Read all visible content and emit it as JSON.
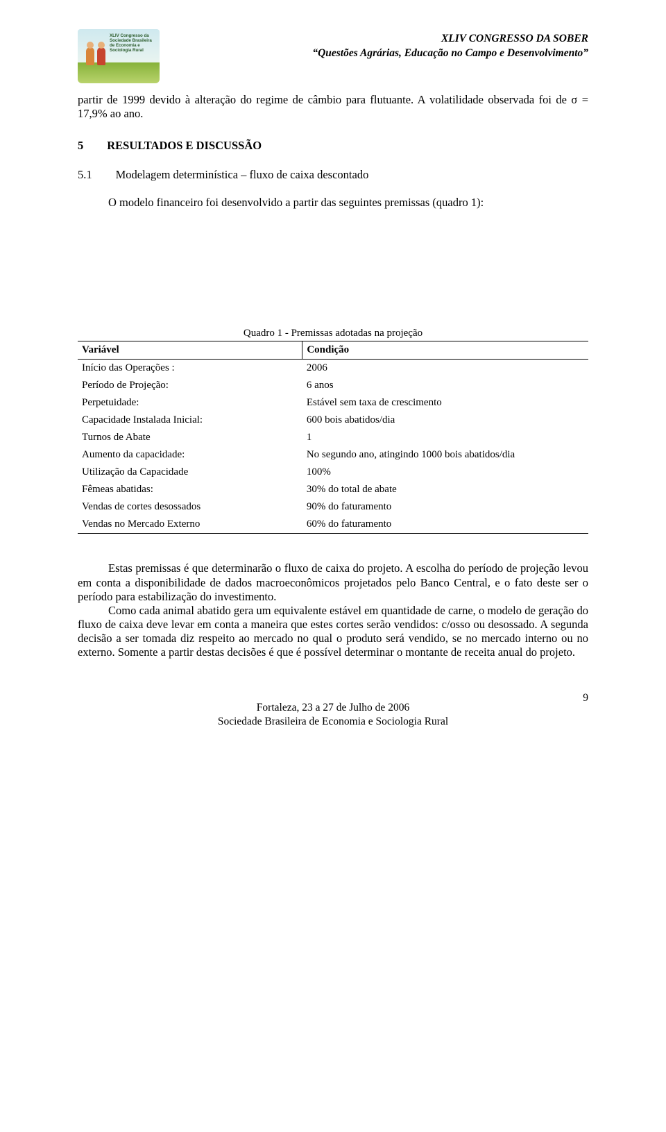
{
  "header": {
    "logo_text": "XLIV Congresso da Sociedade Brasileira de Economia e Sociologia Rural",
    "line1": "XLIV CONGRESSO DA SOBER",
    "line2": "“Questões Agrárias, Educação no Campo e Desenvolvimento”"
  },
  "intro": {
    "p1": "partir de 1999 devido à alteração do regime de câmbio para flutuante. A volatilidade observada foi de σ = 17,9% ao ano."
  },
  "section": {
    "num": "5",
    "title": "RESULTADOS E DISCUSSÃO"
  },
  "subsection": {
    "num": "5.1",
    "title": "Modelagem determinística – fluxo de caixa descontado",
    "p1": "O modelo financeiro foi desenvolvido a partir das seguintes premissas (quadro 1):"
  },
  "table": {
    "caption": "Quadro 1 - Premissas adotadas na projeção",
    "columns": [
      "Variável",
      "Condição"
    ],
    "rows": [
      [
        "Início das Operações :",
        "2006"
      ],
      [
        "Período de Projeção:",
        "6 anos"
      ],
      [
        "Perpetuidade:",
        "Estável sem taxa de crescimento"
      ],
      [
        "Capacidade Instalada Inicial:",
        "600 bois abatidos/dia"
      ],
      [
        "Turnos de Abate",
        "1"
      ],
      [
        "Aumento da capacidade:",
        "No segundo ano, atingindo 1000 bois abatidos/dia"
      ],
      [
        "Utilização da Capacidade",
        "100%"
      ],
      [
        "Fêmeas abatidas:",
        "30% do total de abate"
      ],
      [
        "Vendas de cortes desossados",
        "90% do faturamento"
      ],
      [
        "Vendas no Mercado Externo",
        "60% do faturamento"
      ]
    ]
  },
  "after": {
    "p1": "Estas premissas é que determinarão o fluxo de caixa do projeto. A escolha do período de projeção levou em conta a disponibilidade de dados macroeconômicos projetados pelo Banco Central, e o fato deste ser o período para estabilização do investimento.",
    "p2": "Como cada animal abatido gera um equivalente estável em quantidade de carne, o modelo de geração do fluxo de caixa deve levar em conta a maneira que estes cortes serão vendidos: c/osso ou desossado. A segunda decisão a ser tomada diz respeito ao mercado no qual o produto será vendido, se no mercado interno ou no externo. Somente a partir destas decisões é que é possível determinar o montante de receita anual do projeto."
  },
  "footer": {
    "line1": "Fortaleza, 23 a 27 de Julho de 2006",
    "line2": "Sociedade Brasileira de Economia e Sociologia Rural"
  },
  "page_number": "9"
}
